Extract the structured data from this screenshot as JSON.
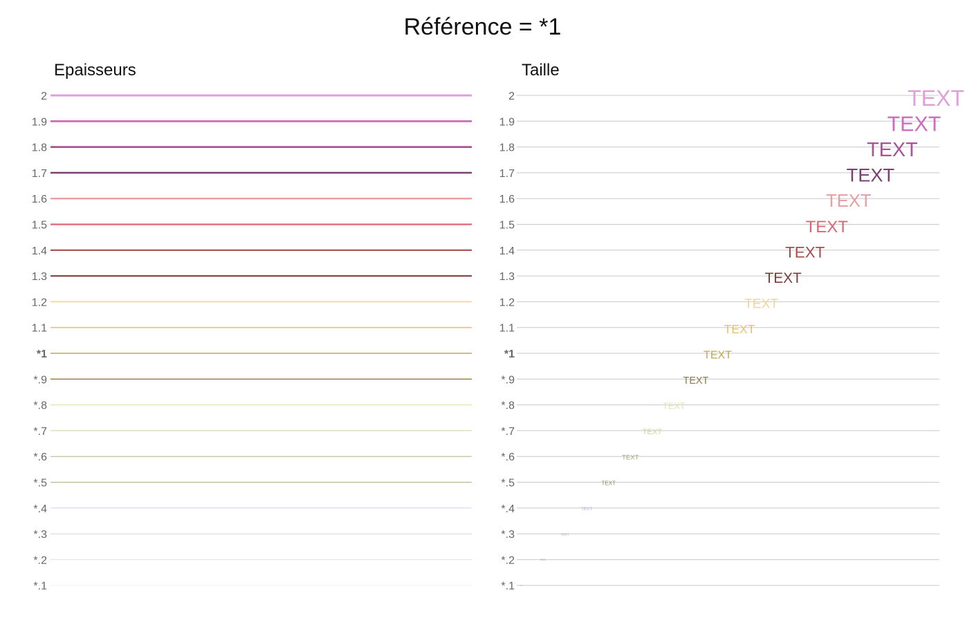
{
  "title": "Référence = *1",
  "chart_data": [
    {
      "type": "line",
      "title": "Epaisseurs",
      "categories": [
        "2",
        "1.9",
        "1.8",
        "1.7",
        "1.6",
        "1.5",
        "1.4",
        "1.3",
        "1.2",
        "1.1",
        "*1",
        "*.9",
        "*.8",
        "*.7",
        "*.6",
        "*.5",
        "*.4",
        "*.3",
        "*.2",
        "*.1"
      ],
      "values": [
        2,
        1.9,
        1.8,
        1.7,
        1.6,
        1.5,
        1.4,
        1.3,
        1.2,
        1.1,
        1,
        0.9,
        0.8,
        0.7,
        0.6,
        0.5,
        0.4,
        0.3,
        0.2,
        0.1
      ],
      "colors": [
        "#dfa0d8",
        "#cc6cbd",
        "#a85297",
        "#7d3e76",
        "#ea9ea4",
        "#dc6673",
        "#a84b4b",
        "#7a3c39",
        "#f2d69c",
        "#e4c272",
        "#c6a350",
        "#8f7a3e",
        "#dfe3b0",
        "#c8d898",
        "#98ac72",
        "#8c9660",
        "#b2b3e4",
        "#9c9ccc",
        "#9a9aae",
        "#a8a8a8"
      ]
    },
    {
      "type": "scatter",
      "title": "Taille",
      "categories": [
        "2",
        "1.9",
        "1.8",
        "1.7",
        "1.6",
        "1.5",
        "1.4",
        "1.3",
        "1.2",
        "1.1",
        "*1",
        "*.9",
        "*.8",
        "*.7",
        "*.6",
        "*.5",
        "*.4",
        "*.3",
        "*.2",
        "*.1"
      ],
      "values": [
        2,
        1.9,
        1.8,
        1.7,
        1.6,
        1.5,
        1.4,
        1.3,
        1.2,
        1.1,
        1,
        0.9,
        0.8,
        0.7,
        0.6,
        0.5,
        0.4,
        0.3,
        0.2,
        0.1
      ],
      "point_label": "TEXT",
      "gridline_color": "#c8c8c8",
      "colors": [
        "#dfa0d8",
        "#cc6cbd",
        "#a85297",
        "#7d3e76",
        "#ea9ea4",
        "#dc6673",
        "#a84b4b",
        "#7a3c39",
        "#f2d69c",
        "#e4c272",
        "#c6a350",
        "#8f7a3e",
        "#dfe3b0",
        "#c8d898",
        "#98ac72",
        "#8c9660",
        "#b2b3e4",
        "#9c9ccc",
        "#9a9aae",
        "#a8a8a8"
      ]
    }
  ]
}
